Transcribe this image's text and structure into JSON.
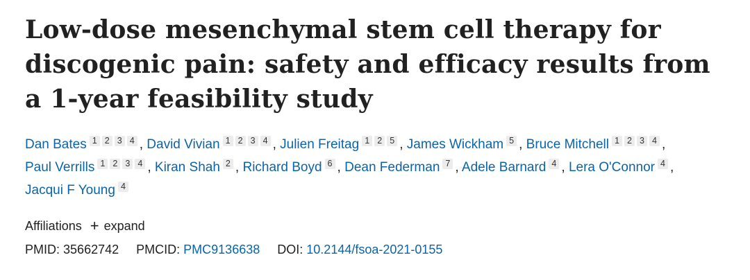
{
  "title": "Low-dose mesenchymal stem cell therapy for discogenic pain: safety and efficacy results from a 1-year feasibility study",
  "authors": [
    {
      "name": "Dan Bates",
      "affs": [
        "1",
        "2",
        "3",
        "4"
      ]
    },
    {
      "name": "David Vivian",
      "affs": [
        "1",
        "2",
        "3",
        "4"
      ]
    },
    {
      "name": "Julien Freitag",
      "affs": [
        "1",
        "2",
        "5"
      ]
    },
    {
      "name": "James Wickham",
      "affs": [
        "5"
      ]
    },
    {
      "name": "Bruce Mitchell",
      "affs": [
        "1",
        "2",
        "3",
        "4"
      ]
    },
    {
      "name": "Paul Verrills",
      "affs": [
        "1",
        "2",
        "3",
        "4"
      ]
    },
    {
      "name": "Kiran Shah",
      "affs": [
        "2"
      ]
    },
    {
      "name": "Richard Boyd",
      "affs": [
        "6"
      ]
    },
    {
      "name": "Dean Federman",
      "affs": [
        "7"
      ]
    },
    {
      "name": "Adele Barnard",
      "affs": [
        "4"
      ]
    },
    {
      "name": "Lera O'Connor",
      "affs": [
        "4"
      ]
    },
    {
      "name": "Jacqui F Young",
      "affs": [
        "4"
      ]
    }
  ],
  "affiliations": {
    "label": "Affiliations",
    "expand_icon": "plus",
    "expand_label": "expand"
  },
  "ids": {
    "pmid_label": "PMID:",
    "pmid": "35662742",
    "pmcid_label": "PMCID:",
    "pmcid": "PMC9136638",
    "doi_label": "DOI:",
    "doi": "10.2144/fsoa-2021-0155"
  },
  "colors": {
    "link": "#0b63a9",
    "text": "#212121",
    "badge_bg": "#ececec"
  }
}
